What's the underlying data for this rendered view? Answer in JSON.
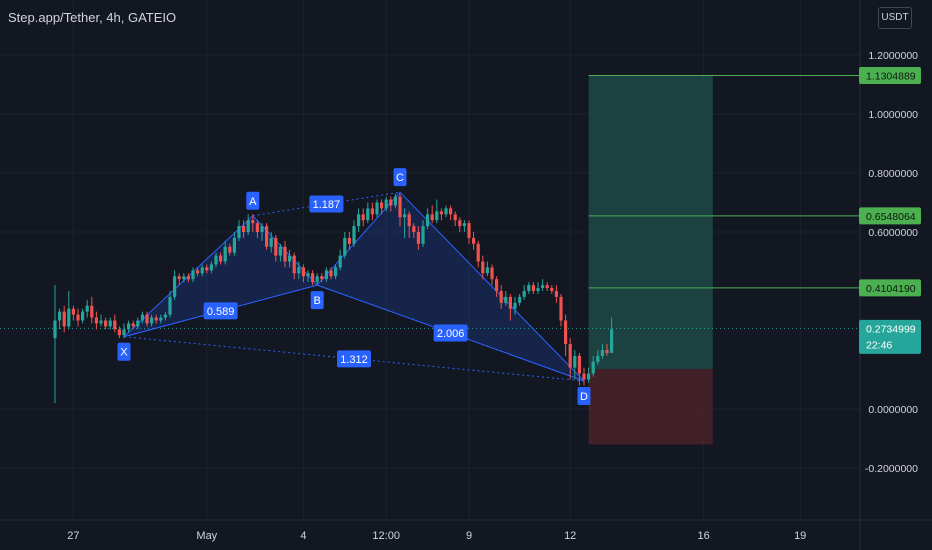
{
  "header": {
    "title": "Step.app/Tether, 4h, GATEIO",
    "currency": "USDT"
  },
  "colors": {
    "background": "#131722",
    "grid": "#1e222d",
    "up": "#26a69a",
    "down": "#ef5350",
    "pattern": "#2962ff",
    "target_line": "#4caf50",
    "profit_zone": "#1d4a45",
    "loss_zone": "#4a2228",
    "last_price": "#26a69a"
  },
  "chart_data": {
    "type": "candlestick",
    "title": "Step.app/Tether, 4h, GATEIO",
    "y_ticks": [
      "1.2000000",
      "1.0000000",
      "0.8000000",
      "0.6000000",
      "0.0000000",
      "-0.2000000"
    ],
    "x_ticks": [
      "27",
      "May",
      "4",
      "12:00",
      "9",
      "12",
      "16",
      "19"
    ],
    "ylim": [
      -0.25,
      1.25
    ],
    "price_labels": [
      {
        "value": 1.1304889,
        "text": "1.1304889",
        "kind": "target"
      },
      {
        "value": 0.6548064,
        "text": "0.6548064",
        "kind": "target"
      },
      {
        "value": 0.410419,
        "text": "0.4104190",
        "kind": "target"
      },
      {
        "value": 0.2734999,
        "text": "0.2734999",
        "kind": "last",
        "countdown": "22:46"
      }
    ],
    "pattern": {
      "name": "XABCD",
      "points": [
        {
          "label": "X",
          "t": 15,
          "price": 0.245
        },
        {
          "label": "A",
          "t": 43,
          "price": 0.655
        },
        {
          "label": "B",
          "t": 57,
          "price": 0.42
        },
        {
          "label": "C",
          "t": 75,
          "price": 0.735
        },
        {
          "label": "D",
          "t": 115,
          "price": 0.095
        }
      ],
      "ratios": [
        "0.589",
        "1.187",
        "2.006",
        "1.312"
      ]
    },
    "position": {
      "entry": 0.135,
      "target": 1.1304889,
      "stop": -0.12,
      "t_start": 116,
      "t_end": 143
    },
    "candles": [
      [
        0.24,
        0.3,
        0.42,
        0.02
      ],
      [
        0.3,
        0.33,
        0.34,
        0.27
      ],
      [
        0.33,
        0.28,
        0.35,
        0.26
      ],
      [
        0.28,
        0.34,
        0.4,
        0.27
      ],
      [
        0.34,
        0.32,
        0.35,
        0.3
      ],
      [
        0.32,
        0.3,
        0.34,
        0.28
      ],
      [
        0.3,
        0.33,
        0.34,
        0.29
      ],
      [
        0.33,
        0.35,
        0.37,
        0.31
      ],
      [
        0.35,
        0.31,
        0.38,
        0.29
      ],
      [
        0.31,
        0.29,
        0.33,
        0.27
      ],
      [
        0.29,
        0.3,
        0.32,
        0.28
      ],
      [
        0.3,
        0.28,
        0.31,
        0.27
      ],
      [
        0.28,
        0.3,
        0.31,
        0.27
      ],
      [
        0.3,
        0.27,
        0.32,
        0.26
      ],
      [
        0.27,
        0.25,
        0.28,
        0.24
      ],
      [
        0.25,
        0.27,
        0.29,
        0.24
      ],
      [
        0.27,
        0.29,
        0.3,
        0.26
      ],
      [
        0.29,
        0.28,
        0.3,
        0.27
      ],
      [
        0.28,
        0.3,
        0.31,
        0.27
      ],
      [
        0.3,
        0.32,
        0.33,
        0.29
      ],
      [
        0.32,
        0.29,
        0.33,
        0.28
      ],
      [
        0.29,
        0.31,
        0.32,
        0.28
      ],
      [
        0.31,
        0.3,
        0.32,
        0.29
      ],
      [
        0.3,
        0.31,
        0.32,
        0.29
      ],
      [
        0.31,
        0.32,
        0.33,
        0.3
      ],
      [
        0.32,
        0.38,
        0.4,
        0.31
      ],
      [
        0.38,
        0.45,
        0.47,
        0.37
      ],
      [
        0.45,
        0.44,
        0.46,
        0.42
      ],
      [
        0.44,
        0.45,
        0.46,
        0.43
      ],
      [
        0.45,
        0.44,
        0.46,
        0.43
      ],
      [
        0.44,
        0.47,
        0.48,
        0.43
      ],
      [
        0.47,
        0.46,
        0.48,
        0.45
      ],
      [
        0.46,
        0.48,
        0.49,
        0.45
      ],
      [
        0.48,
        0.47,
        0.49,
        0.46
      ],
      [
        0.47,
        0.49,
        0.5,
        0.46
      ],
      [
        0.49,
        0.52,
        0.53,
        0.48
      ],
      [
        0.52,
        0.5,
        0.53,
        0.49
      ],
      [
        0.5,
        0.55,
        0.57,
        0.49
      ],
      [
        0.55,
        0.53,
        0.56,
        0.52
      ],
      [
        0.53,
        0.58,
        0.6,
        0.52
      ],
      [
        0.58,
        0.62,
        0.64,
        0.57
      ],
      [
        0.62,
        0.6,
        0.64,
        0.58
      ],
      [
        0.6,
        0.64,
        0.66,
        0.59
      ],
      [
        0.64,
        0.63,
        0.66,
        0.6
      ],
      [
        0.63,
        0.6,
        0.64,
        0.58
      ],
      [
        0.6,
        0.62,
        0.63,
        0.57
      ],
      [
        0.62,
        0.55,
        0.63,
        0.54
      ],
      [
        0.55,
        0.58,
        0.6,
        0.53
      ],
      [
        0.58,
        0.52,
        0.59,
        0.5
      ],
      [
        0.52,
        0.55,
        0.56,
        0.5
      ],
      [
        0.55,
        0.5,
        0.57,
        0.48
      ],
      [
        0.5,
        0.52,
        0.54,
        0.48
      ],
      [
        0.52,
        0.46,
        0.53,
        0.44
      ],
      [
        0.46,
        0.48,
        0.5,
        0.44
      ],
      [
        0.48,
        0.45,
        0.49,
        0.43
      ],
      [
        0.45,
        0.46,
        0.47,
        0.43
      ],
      [
        0.46,
        0.43,
        0.47,
        0.42
      ],
      [
        0.43,
        0.45,
        0.46,
        0.42
      ],
      [
        0.45,
        0.44,
        0.46,
        0.43
      ],
      [
        0.44,
        0.47,
        0.48,
        0.43
      ],
      [
        0.47,
        0.45,
        0.48,
        0.44
      ],
      [
        0.45,
        0.48,
        0.49,
        0.44
      ],
      [
        0.48,
        0.52,
        0.54,
        0.47
      ],
      [
        0.52,
        0.58,
        0.6,
        0.51
      ],
      [
        0.58,
        0.56,
        0.6,
        0.54
      ],
      [
        0.56,
        0.62,
        0.64,
        0.55
      ],
      [
        0.62,
        0.66,
        0.68,
        0.6
      ],
      [
        0.66,
        0.64,
        0.68,
        0.62
      ],
      [
        0.64,
        0.68,
        0.7,
        0.63
      ],
      [
        0.68,
        0.66,
        0.7,
        0.64
      ],
      [
        0.66,
        0.7,
        0.71,
        0.65
      ],
      [
        0.7,
        0.68,
        0.71,
        0.66
      ],
      [
        0.68,
        0.71,
        0.72,
        0.67
      ],
      [
        0.71,
        0.69,
        0.72,
        0.67
      ],
      [
        0.69,
        0.72,
        0.73,
        0.68
      ],
      [
        0.72,
        0.65,
        0.73,
        0.62
      ],
      [
        0.65,
        0.66,
        0.68,
        0.58
      ],
      [
        0.66,
        0.62,
        0.67,
        0.58
      ],
      [
        0.62,
        0.6,
        0.63,
        0.58
      ],
      [
        0.6,
        0.56,
        0.62,
        0.54
      ],
      [
        0.56,
        0.62,
        0.64,
        0.55
      ],
      [
        0.62,
        0.66,
        0.68,
        0.61
      ],
      [
        0.66,
        0.64,
        0.69,
        0.63
      ],
      [
        0.64,
        0.67,
        0.71,
        0.63
      ],
      [
        0.67,
        0.66,
        0.68,
        0.64
      ],
      [
        0.66,
        0.68,
        0.69,
        0.65
      ],
      [
        0.68,
        0.66,
        0.69,
        0.64
      ],
      [
        0.66,
        0.64,
        0.67,
        0.62
      ],
      [
        0.64,
        0.62,
        0.65,
        0.6
      ],
      [
        0.62,
        0.63,
        0.64,
        0.6
      ],
      [
        0.63,
        0.58,
        0.64,
        0.56
      ],
      [
        0.58,
        0.56,
        0.6,
        0.54
      ],
      [
        0.56,
        0.5,
        0.57,
        0.48
      ],
      [
        0.5,
        0.46,
        0.52,
        0.44
      ],
      [
        0.46,
        0.48,
        0.5,
        0.45
      ],
      [
        0.48,
        0.44,
        0.49,
        0.42
      ],
      [
        0.44,
        0.4,
        0.45,
        0.38
      ],
      [
        0.4,
        0.36,
        0.42,
        0.34
      ],
      [
        0.36,
        0.38,
        0.4,
        0.35
      ],
      [
        0.38,
        0.34,
        0.39,
        0.3
      ],
      [
        0.34,
        0.36,
        0.38,
        0.32
      ],
      [
        0.36,
        0.38,
        0.39,
        0.35
      ],
      [
        0.38,
        0.4,
        0.42,
        0.37
      ],
      [
        0.4,
        0.42,
        0.43,
        0.39
      ],
      [
        0.42,
        0.4,
        0.43,
        0.39
      ],
      [
        0.4,
        0.41,
        0.43,
        0.39
      ],
      [
        0.41,
        0.42,
        0.44,
        0.4
      ],
      [
        0.42,
        0.41,
        0.43,
        0.4
      ],
      [
        0.41,
        0.4,
        0.42,
        0.39
      ],
      [
        0.4,
        0.38,
        0.42,
        0.36
      ],
      [
        0.38,
        0.3,
        0.39,
        0.28
      ],
      [
        0.3,
        0.22,
        0.32,
        0.18
      ],
      [
        0.22,
        0.14,
        0.24,
        0.1
      ],
      [
        0.14,
        0.18,
        0.2,
        0.1
      ],
      [
        0.18,
        0.12,
        0.19,
        0.08
      ],
      [
        0.12,
        0.1,
        0.14,
        0.08
      ],
      [
        0.1,
        0.12,
        0.14,
        0.09
      ],
      [
        0.12,
        0.16,
        0.18,
        0.11
      ],
      [
        0.16,
        0.18,
        0.2,
        0.15
      ],
      [
        0.18,
        0.2,
        0.22,
        0.17
      ],
      [
        0.2,
        0.19,
        0.22,
        0.18
      ],
      [
        0.19,
        0.27,
        0.31,
        0.19
      ]
    ]
  }
}
